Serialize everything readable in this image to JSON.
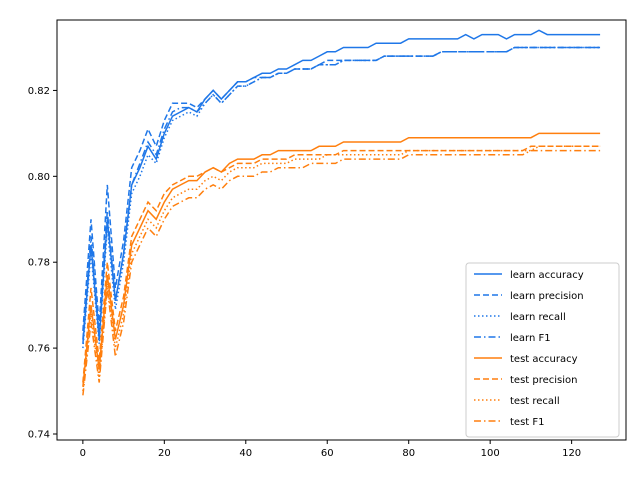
{
  "chart_data": {
    "type": "line",
    "title": "",
    "xlabel": "",
    "ylabel": "",
    "xlim": [
      -6.35,
      133.35
    ],
    "ylim": [
      0.7386,
      0.8364
    ],
    "xticks": [
      0,
      20,
      40,
      60,
      80,
      100,
      120
    ],
    "xtick_labels": [
      "0",
      "20",
      "40",
      "60",
      "80",
      "100",
      "120"
    ],
    "yticks": [
      0.74,
      0.76,
      0.78,
      0.8,
      0.82
    ],
    "ytick_labels": [
      "0.74",
      "0.76",
      "0.78",
      "0.80",
      "0.82"
    ],
    "grid": false,
    "legend_position": "lower-right",
    "x": [
      0,
      2,
      4,
      6,
      8,
      10,
      12,
      14,
      16,
      18,
      20,
      22,
      24,
      26,
      28,
      30,
      32,
      34,
      36,
      38,
      40,
      42,
      44,
      46,
      48,
      50,
      52,
      54,
      56,
      58,
      60,
      62,
      64,
      66,
      68,
      70,
      72,
      74,
      76,
      78,
      80,
      82,
      84,
      86,
      88,
      90,
      92,
      94,
      96,
      98,
      100,
      102,
      104,
      106,
      108,
      110,
      112,
      114,
      116,
      118,
      120,
      122,
      124,
      126,
      127
    ],
    "series": [
      {
        "name": "learn accuracy",
        "color": "#1f77e8",
        "dash": "solid",
        "values": [
          0.761,
          0.784,
          0.762,
          0.79,
          0.771,
          0.782,
          0.798,
          0.802,
          0.807,
          0.804,
          0.81,
          0.814,
          0.815,
          0.816,
          0.815,
          0.818,
          0.82,
          0.818,
          0.82,
          0.822,
          0.822,
          0.823,
          0.824,
          0.824,
          0.825,
          0.825,
          0.826,
          0.827,
          0.827,
          0.828,
          0.829,
          0.829,
          0.83,
          0.83,
          0.83,
          0.83,
          0.831,
          0.831,
          0.831,
          0.831,
          0.832,
          0.832,
          0.832,
          0.832,
          0.832,
          0.832,
          0.832,
          0.833,
          0.832,
          0.833,
          0.833,
          0.833,
          0.832,
          0.833,
          0.833,
          0.833,
          0.834,
          0.833,
          0.833,
          0.833,
          0.833,
          0.833,
          0.833,
          0.833,
          0.833
        ]
      },
      {
        "name": "learn precision",
        "color": "#1f77e8",
        "dash": "dashed",
        "values": [
          0.764,
          0.79,
          0.765,
          0.798,
          0.774,
          0.785,
          0.802,
          0.806,
          0.811,
          0.807,
          0.813,
          0.817,
          0.817,
          0.817,
          0.816,
          0.818,
          0.82,
          0.818,
          0.82,
          0.822,
          0.822,
          0.823,
          0.823,
          0.823,
          0.824,
          0.824,
          0.825,
          0.825,
          0.825,
          0.826,
          0.827,
          0.827,
          0.827,
          0.827,
          0.827,
          0.827,
          0.827,
          0.828,
          0.828,
          0.828,
          0.828,
          0.828,
          0.828,
          0.828,
          0.829,
          0.829,
          0.829,
          0.829,
          0.829,
          0.829,
          0.829,
          0.829,
          0.829,
          0.83,
          0.83,
          0.83,
          0.83,
          0.83,
          0.83,
          0.83,
          0.83,
          0.83,
          0.83,
          0.83,
          0.83
        ]
      },
      {
        "name": "learn recall",
        "color": "#1f77e8",
        "dash": "dotted",
        "values": [
          0.76,
          0.782,
          0.761,
          0.788,
          0.769,
          0.78,
          0.796,
          0.8,
          0.805,
          0.803,
          0.809,
          0.813,
          0.814,
          0.815,
          0.814,
          0.817,
          0.819,
          0.817,
          0.819,
          0.821,
          0.821,
          0.822,
          0.823,
          0.823,
          0.824,
          0.824,
          0.825,
          0.825,
          0.825,
          0.826,
          0.826,
          0.826,
          0.827,
          0.827,
          0.827,
          0.827,
          0.827,
          0.828,
          0.828,
          0.828,
          0.828,
          0.828,
          0.828,
          0.828,
          0.829,
          0.829,
          0.829,
          0.829,
          0.829,
          0.829,
          0.829,
          0.829,
          0.829,
          0.83,
          0.83,
          0.83,
          0.83,
          0.83,
          0.83,
          0.83,
          0.83,
          0.83,
          0.83,
          0.83,
          0.83
        ]
      },
      {
        "name": "learn F1",
        "color": "#1f77e8",
        "dash": "dashdot",
        "values": [
          0.762,
          0.786,
          0.763,
          0.792,
          0.771,
          0.782,
          0.798,
          0.803,
          0.808,
          0.805,
          0.811,
          0.815,
          0.816,
          0.816,
          0.815,
          0.817,
          0.819,
          0.817,
          0.819,
          0.821,
          0.821,
          0.822,
          0.823,
          0.823,
          0.824,
          0.824,
          0.825,
          0.825,
          0.825,
          0.826,
          0.826,
          0.826,
          0.827,
          0.827,
          0.827,
          0.827,
          0.827,
          0.828,
          0.828,
          0.828,
          0.828,
          0.828,
          0.828,
          0.828,
          0.829,
          0.829,
          0.829,
          0.829,
          0.829,
          0.829,
          0.829,
          0.829,
          0.829,
          0.83,
          0.83,
          0.83,
          0.83,
          0.83,
          0.83,
          0.83,
          0.83,
          0.83,
          0.83,
          0.83,
          0.83
        ]
      },
      {
        "name": "test accuracy",
        "color": "#ff7f0e",
        "dash": "solid",
        "values": [
          0.751,
          0.77,
          0.755,
          0.777,
          0.762,
          0.77,
          0.784,
          0.788,
          0.792,
          0.79,
          0.794,
          0.797,
          0.798,
          0.799,
          0.799,
          0.801,
          0.802,
          0.801,
          0.803,
          0.804,
          0.804,
          0.804,
          0.805,
          0.805,
          0.806,
          0.806,
          0.806,
          0.806,
          0.806,
          0.807,
          0.807,
          0.807,
          0.808,
          0.808,
          0.808,
          0.808,
          0.808,
          0.808,
          0.808,
          0.808,
          0.809,
          0.809,
          0.809,
          0.809,
          0.809,
          0.809,
          0.809,
          0.809,
          0.809,
          0.809,
          0.809,
          0.809,
          0.809,
          0.809,
          0.809,
          0.809,
          0.81,
          0.81,
          0.81,
          0.81,
          0.81,
          0.81,
          0.81,
          0.81,
          0.81
        ]
      },
      {
        "name": "test precision",
        "color": "#ff7f0e",
        "dash": "dashed",
        "values": [
          0.752,
          0.774,
          0.757,
          0.78,
          0.764,
          0.772,
          0.786,
          0.79,
          0.794,
          0.792,
          0.796,
          0.798,
          0.799,
          0.8,
          0.8,
          0.801,
          0.802,
          0.801,
          0.802,
          0.803,
          0.803,
          0.803,
          0.804,
          0.804,
          0.804,
          0.804,
          0.805,
          0.805,
          0.805,
          0.805,
          0.805,
          0.805,
          0.806,
          0.806,
          0.806,
          0.806,
          0.806,
          0.806,
          0.806,
          0.806,
          0.806,
          0.806,
          0.806,
          0.806,
          0.806,
          0.806,
          0.806,
          0.806,
          0.806,
          0.806,
          0.806,
          0.806,
          0.806,
          0.806,
          0.806,
          0.807,
          0.807,
          0.807,
          0.807,
          0.807,
          0.807,
          0.807,
          0.807,
          0.807,
          0.807
        ]
      },
      {
        "name": "test recall",
        "color": "#ff7f0e",
        "dash": "dotted",
        "values": [
          0.75,
          0.768,
          0.753,
          0.775,
          0.76,
          0.768,
          0.782,
          0.786,
          0.79,
          0.788,
          0.792,
          0.795,
          0.796,
          0.797,
          0.797,
          0.799,
          0.8,
          0.799,
          0.801,
          0.802,
          0.802,
          0.802,
          0.803,
          0.803,
          0.803,
          0.803,
          0.804,
          0.804,
          0.804,
          0.804,
          0.805,
          0.805,
          0.805,
          0.805,
          0.805,
          0.805,
          0.805,
          0.805,
          0.805,
          0.805,
          0.806,
          0.806,
          0.806,
          0.806,
          0.806,
          0.806,
          0.806,
          0.806,
          0.806,
          0.806,
          0.806,
          0.806,
          0.806,
          0.806,
          0.806,
          0.806,
          0.807,
          0.807,
          0.807,
          0.807,
          0.807,
          0.807,
          0.807,
          0.807,
          0.807
        ]
      },
      {
        "name": "test F1",
        "color": "#ff7f0e",
        "dash": "dashdot",
        "values": [
          0.749,
          0.766,
          0.752,
          0.774,
          0.758,
          0.766,
          0.78,
          0.784,
          0.788,
          0.786,
          0.79,
          0.793,
          0.794,
          0.795,
          0.795,
          0.797,
          0.798,
          0.797,
          0.799,
          0.8,
          0.8,
          0.8,
          0.801,
          0.801,
          0.802,
          0.802,
          0.802,
          0.802,
          0.803,
          0.803,
          0.803,
          0.803,
          0.804,
          0.804,
          0.804,
          0.804,
          0.804,
          0.804,
          0.804,
          0.804,
          0.805,
          0.805,
          0.805,
          0.805,
          0.805,
          0.805,
          0.805,
          0.805,
          0.805,
          0.805,
          0.805,
          0.805,
          0.805,
          0.805,
          0.805,
          0.806,
          0.806,
          0.806,
          0.806,
          0.806,
          0.806,
          0.806,
          0.806,
          0.806,
          0.806
        ]
      }
    ]
  }
}
